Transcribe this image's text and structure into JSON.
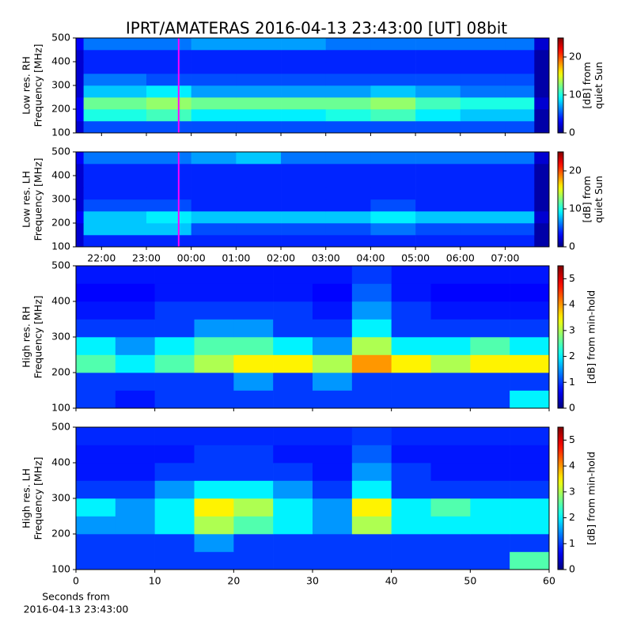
{
  "figure": {
    "title": "IPRT/AMATERAS 2016-04-13 23:43:00 [UT]   08bit"
  },
  "colormap": "jet",
  "chart_data": [
    {
      "type": "heatmap",
      "ylabel": [
        "Low res. RH",
        "Frequency [MHz]"
      ],
      "ylim": [
        100,
        500
      ],
      "yticks": [
        100,
        200,
        300,
        400,
        500
      ],
      "xlim": [
        21.43,
        31.98
      ],
      "xticks": [
        22,
        23,
        24,
        25,
        26,
        27,
        28,
        29,
        30,
        31
      ],
      "xtick_labels": false,
      "marker_x": 23.72,
      "marker_color": "#ff00ff",
      "x_edges": [
        21.43,
        21.6,
        23,
        24,
        25,
        26,
        27,
        28,
        29,
        30,
        31,
        31.65,
        31.98
      ],
      "y_edges": [
        100,
        150,
        200,
        250,
        300,
        350,
        400,
        450,
        500
      ],
      "z": [
        [
          2,
          5,
          5,
          5,
          5,
          5,
          5,
          5,
          5,
          5,
          5,
          1
        ],
        [
          3,
          10,
          11,
          9,
          9,
          9,
          10,
          11,
          9,
          8,
          8,
          1
        ],
        [
          3,
          12,
          13,
          12,
          12,
          12,
          12,
          13,
          11,
          10,
          10,
          2
        ],
        [
          2,
          8,
          9,
          7,
          7,
          7,
          7,
          8,
          7,
          6,
          6,
          1
        ],
        [
          2,
          6,
          5,
          5,
          5,
          5,
          5,
          5,
          5,
          5,
          5,
          1
        ],
        [
          2,
          4,
          4,
          4,
          4,
          4,
          4,
          4,
          4,
          4,
          4,
          1
        ],
        [
          2,
          4,
          4,
          4,
          4,
          4,
          4,
          4,
          4,
          4,
          4,
          1
        ],
        [
          3,
          6,
          6,
          7,
          7,
          7,
          6,
          6,
          6,
          6,
          6,
          2
        ]
      ],
      "clim": [
        0,
        25
      ],
      "cticks": [
        0,
        10,
        20
      ],
      "clabel": [
        "[dB] from",
        "quiet Sun"
      ]
    },
    {
      "type": "heatmap",
      "ylabel": [
        "Low res. LH",
        "Frequency [MHz]"
      ],
      "ylim": [
        100,
        500
      ],
      "yticks": [
        100,
        200,
        300,
        400,
        500
      ],
      "xlim": [
        21.43,
        31.98
      ],
      "xticks": [
        {
          "value": 22,
          "label": "22:00"
        },
        {
          "value": 23,
          "label": "23:00"
        },
        {
          "value": 24,
          "label": "00:00"
        },
        {
          "value": 25,
          "label": "01:00"
        },
        {
          "value": 26,
          "label": "02:00"
        },
        {
          "value": 27,
          "label": "03:00"
        },
        {
          "value": 28,
          "label": "04:00"
        },
        {
          "value": 29,
          "label": "05:00"
        },
        {
          "value": 30,
          "label": "06:00"
        },
        {
          "value": 31,
          "label": "07:00"
        }
      ],
      "xtick_labels": true,
      "marker_x": 23.72,
      "marker_color": "#ff00ff",
      "x_edges": [
        21.43,
        21.6,
        23,
        24,
        25,
        26,
        27,
        28,
        29,
        30,
        31,
        31.65,
        31.98
      ],
      "y_edges": [
        100,
        150,
        200,
        250,
        300,
        350,
        400,
        450,
        500
      ],
      "z": [
        [
          2,
          4,
          4,
          4,
          4,
          4,
          4,
          4,
          4,
          4,
          4,
          1
        ],
        [
          2,
          8,
          8,
          5,
          5,
          5,
          5,
          6,
          5,
          5,
          5,
          1
        ],
        [
          3,
          8,
          9,
          8,
          8,
          8,
          8,
          9,
          8,
          8,
          8,
          2
        ],
        [
          2,
          5,
          5,
          4,
          4,
          4,
          4,
          5,
          4,
          4,
          4,
          1
        ],
        [
          2,
          4,
          4,
          4,
          4,
          4,
          4,
          4,
          4,
          4,
          4,
          1
        ],
        [
          2,
          4,
          4,
          4,
          4,
          4,
          4,
          4,
          4,
          4,
          4,
          1
        ],
        [
          2,
          4,
          4,
          4,
          4,
          4,
          4,
          4,
          4,
          4,
          4,
          1
        ],
        [
          3,
          6,
          6,
          7,
          8,
          6,
          6,
          6,
          6,
          6,
          6,
          2
        ]
      ],
      "clim": [
        0,
        25
      ],
      "cticks": [
        0,
        10,
        20
      ],
      "clabel": [
        "[dB] from",
        "quiet Sun"
      ]
    },
    {
      "type": "heatmap",
      "ylabel": [
        "High res. RH",
        "Frequency [MHz]"
      ],
      "ylim": [
        100,
        500
      ],
      "yticks": [
        100,
        200,
        300,
        400,
        500
      ],
      "xlim": [
        0,
        60
      ],
      "xticks": [
        0,
        10,
        20,
        30,
        40,
        50,
        60
      ],
      "xtick_labels": false,
      "x_edges": [
        0,
        5,
        10,
        15,
        20,
        25,
        30,
        35,
        40,
        45,
        50,
        55,
        60
      ],
      "y_edges": [
        100,
        150,
        200,
        250,
        300,
        350,
        400,
        450,
        500
      ],
      "z": [
        [
          1,
          0.8,
          1,
          1,
          1,
          1,
          1,
          1,
          1,
          1,
          1,
          2
        ],
        [
          1,
          1,
          1,
          1,
          1.5,
          1,
          1.5,
          1,
          1,
          1,
          1,
          1
        ],
        [
          2.5,
          2,
          2.5,
          3,
          3.5,
          3.5,
          3,
          4,
          3.5,
          3,
          3.5,
          3.5
        ],
        [
          2,
          1.5,
          2,
          2.5,
          2.5,
          2,
          1.5,
          3,
          2,
          2,
          2.5,
          2
        ],
        [
          1,
          1,
          1,
          1.5,
          1.5,
          1,
          1,
          2,
          1,
          1,
          1,
          1
        ],
        [
          0.8,
          0.8,
          1,
          1,
          1,
          1,
          0.8,
          1.5,
          1,
          0.8,
          0.8,
          0.8
        ],
        [
          0.7,
          0.7,
          0.8,
          0.8,
          0.8,
          0.8,
          0.7,
          1.2,
          0.8,
          0.7,
          0.7,
          0.7
        ],
        [
          0.8,
          0.8,
          0.8,
          0.8,
          0.8,
          0.8,
          0.8,
          1,
          0.8,
          0.8,
          0.8,
          0.8
        ]
      ],
      "clim": [
        0,
        5.5
      ],
      "cticks": [
        0,
        1,
        2,
        3,
        4,
        5
      ],
      "clabel": [
        "[dB] from min-hold"
      ]
    },
    {
      "type": "heatmap",
      "ylabel": [
        "High res. LH",
        "Frequency [MHz]"
      ],
      "ylim": [
        100,
        500
      ],
      "yticks": [
        100,
        200,
        300,
        400,
        500
      ],
      "xlim": [
        0,
        60
      ],
      "xticks": [
        0,
        10,
        20,
        30,
        40,
        50,
        60
      ],
      "xtick_labels": true,
      "xlabel": [
        "Seconds from",
        "2016-04-13 23:43:00"
      ],
      "x_edges": [
        0,
        5,
        10,
        15,
        20,
        25,
        30,
        35,
        40,
        45,
        50,
        55,
        60
      ],
      "y_edges": [
        100,
        150,
        200,
        250,
        300,
        350,
        400,
        450,
        500
      ],
      "z": [
        [
          1,
          1,
          1,
          1,
          1,
          1,
          1,
          1,
          1,
          1,
          1,
          2.5
        ],
        [
          1,
          1,
          1,
          1.5,
          1,
          1,
          1,
          1,
          1,
          1,
          1,
          1
        ],
        [
          1.5,
          1.5,
          2,
          3,
          2.5,
          2,
          1.5,
          3,
          2,
          2,
          2,
          2
        ],
        [
          2,
          1.5,
          2,
          3.5,
          3,
          2,
          1.5,
          3.5,
          2,
          2.5,
          2,
          2
        ],
        [
          1,
          1,
          1.5,
          2,
          2,
          1.5,
          1,
          2,
          1,
          1,
          1,
          1
        ],
        [
          0.8,
          0.8,
          1,
          1,
          1,
          1,
          0.8,
          1.5,
          1,
          0.8,
          0.8,
          0.8
        ],
        [
          0.8,
          0.8,
          0.8,
          1,
          1,
          0.8,
          0.8,
          1.2,
          0.8,
          0.8,
          0.8,
          0.8
        ],
        [
          0.9,
          0.9,
          0.9,
          0.9,
          0.9,
          0.9,
          0.9,
          1,
          0.9,
          0.9,
          0.9,
          0.9
        ]
      ],
      "clim": [
        0,
        5.5
      ],
      "cticks": [
        0,
        1,
        2,
        3,
        4,
        5
      ],
      "clabel": [
        "[dB] from min-hold"
      ]
    }
  ]
}
